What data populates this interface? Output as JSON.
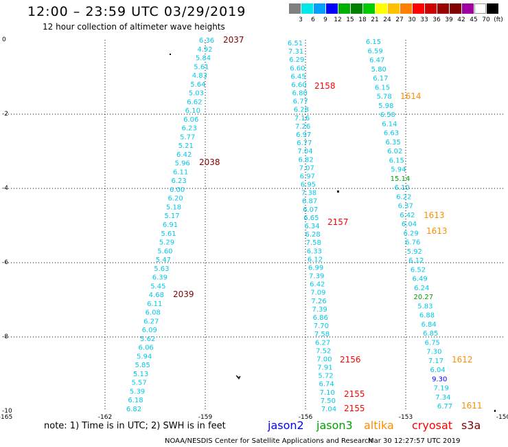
{
  "header": {
    "title": "12:00 – 23:59 UTC 03/29/2019",
    "subtitle": "12 hour collection of altimeter wave heights"
  },
  "colorbar": {
    "labels": [
      "3",
      "6",
      "9",
      "12",
      "15",
      "18",
      "21",
      "24",
      "27",
      "30",
      "33",
      "36",
      "39",
      "42",
      "45",
      "70",
      "(ft)"
    ],
    "colors": [
      "#808080",
      "#00e8e8",
      "#00a0ff",
      "#0000ff",
      "#00b000",
      "#008000",
      "#00cc00",
      "#ffff00",
      "#ffc000",
      "#ff8000",
      "#ff0000",
      "#cc0000",
      "#990000",
      "#800000",
      "#a000a0",
      "#ffffff",
      "#000000"
    ]
  },
  "map": {
    "lon_ticks": [
      "-165",
      "-162",
      "-159",
      "-156",
      "-153",
      "-150"
    ],
    "lat_ticks": [
      "0",
      "-2",
      "-4",
      "-6",
      "-8",
      "-10"
    ],
    "track1": [
      "6.36",
      "4.92",
      "5.84",
      "5.61",
      "4.83",
      "5.64",
      "5.03",
      "6.62",
      "6.10",
      "6.06",
      "6.23",
      "5.77",
      "5.21",
      "6.42",
      "5.96",
      "6.11",
      "6.23",
      "6.00",
      "6.20",
      "5.18",
      "5.17",
      "6.91",
      "5.61",
      "5.29",
      "5.60",
      "5.47",
      "5.63",
      "6.39",
      "5.45",
      "4.68",
      "6.11",
      "6.08",
      "6.27",
      "6.09",
      "5.62",
      "6.06",
      "5.94",
      "5.85",
      "5.13",
      "5.57",
      "5.39",
      "6.18",
      "6.82"
    ],
    "track2": [
      "6.51",
      "7.31",
      "6.29",
      "6.60",
      "6.45",
      "6.60",
      "6.80",
      "6.77",
      "6.28",
      "7.16",
      "7.26",
      "6.97",
      "6.77",
      "7.04",
      "6.82",
      "7.07",
      "6.97",
      "6.95",
      "7.38",
      "6.87",
      "6.07",
      "6.65",
      "6.34",
      "6.28",
      "7.58",
      "6.33",
      "6.12",
      "6.99",
      "7.39",
      "6.42",
      "7.09",
      "7.26",
      "7.39",
      "6.86",
      "7.70",
      "7.58",
      "6.27",
      "7.52",
      "7.00",
      "7.91",
      "5.72",
      "6.74",
      "7.10",
      "7.50",
      "7.04"
    ],
    "track3": [
      "6.15",
      "6.59",
      "6.47",
      "5.80",
      "6.17",
      "6.15",
      "5.78",
      "5.98",
      "6.50",
      "6.14",
      "6.63",
      "6.35",
      "6.02",
      "6.15",
      "5.94",
      "15.14",
      "6.10",
      "6.22",
      "6.37",
      "6.42",
      "6.04",
      "6.29",
      "6.76",
      "5.92",
      "6.12",
      "6.52",
      "6.49",
      "6.24",
      "20.27",
      "5.83",
      "6.88",
      "6.84",
      "6.85",
      "6.75",
      "7.30",
      "7.17",
      "6.04",
      "9.30",
      "7.19",
      "7.34",
      "6.77"
    ],
    "times": [
      "2037",
      "2038",
      "2039",
      "2158",
      "2157",
      "2156",
      "2155",
      "2155",
      "1614",
      "1613",
      "1613",
      "1612",
      "1611"
    ]
  },
  "footer": {
    "note": "note:  1) Time is in UTC;  2) SWH is in feet",
    "satellites": [
      "jason2",
      "jason3",
      "altika",
      "cryosat",
      "s3a"
    ],
    "credit": "NOAA/NESDIS Center for Satellite Applications and Research",
    "timestamp": "Mar 30 12:27:57 UTC 2019"
  },
  "colors": {
    "swh_cyan": "#00c8e8",
    "swh_green": "#00a000",
    "swh_blue": "#0000ff",
    "time_jason2": "#0000ff",
    "time_jason3": "#00a000",
    "time_altika": "#ff8c00",
    "time_cryosat": "#ff0000",
    "time_s3a": "#800000",
    "grid": "#000000"
  }
}
